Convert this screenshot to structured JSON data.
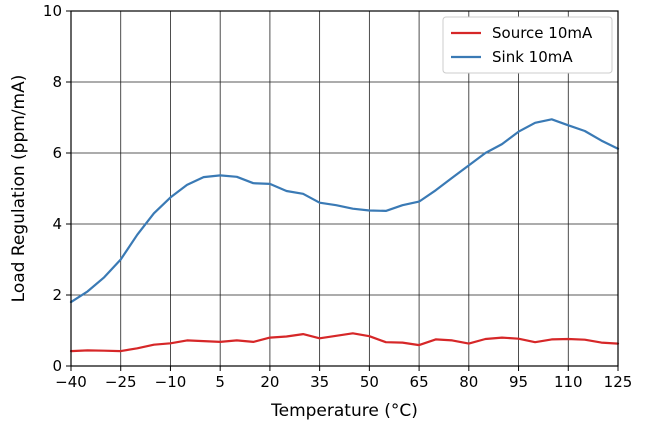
{
  "chart_data": {
    "type": "line",
    "xlabel": "Temperature (°C)",
    "ylabel": "Load Regulation (ppm/mA)",
    "xlim": [
      -40,
      125
    ],
    "ylim": [
      0,
      10
    ],
    "x_ticks": [
      -40,
      -25,
      -10,
      5,
      20,
      35,
      50,
      65,
      80,
      95,
      110,
      125
    ],
    "x_tick_labels": [
      "−40",
      "−25",
      "−10",
      "5",
      "20",
      "35",
      "50",
      "65",
      "80",
      "95",
      "110",
      "125"
    ],
    "y_ticks": [
      0,
      2,
      4,
      6,
      8,
      10
    ],
    "y_tick_labels": [
      "0",
      "2",
      "4",
      "6",
      "8",
      "10"
    ],
    "grid": true,
    "legend_position": "top-right",
    "series": [
      {
        "name": "Source 10mA",
        "color": "#d62728",
        "x": [
          -40,
          -35,
          -30,
          -25,
          -20,
          -15,
          -10,
          -5,
          0,
          5,
          10,
          15,
          20,
          25,
          30,
          35,
          40,
          45,
          50,
          55,
          60,
          65,
          70,
          75,
          80,
          85,
          90,
          95,
          100,
          105,
          110,
          115,
          120,
          125
        ],
        "values": [
          0.42,
          0.44,
          0.43,
          0.42,
          0.5,
          0.6,
          0.64,
          0.72,
          0.7,
          0.68,
          0.72,
          0.68,
          0.8,
          0.83,
          0.9,
          0.78,
          0.85,
          0.92,
          0.84,
          0.67,
          0.66,
          0.59,
          0.75,
          0.72,
          0.63,
          0.76,
          0.8,
          0.77,
          0.67,
          0.75,
          0.76,
          0.74,
          0.66,
          0.63
        ]
      },
      {
        "name": "Sink 10mA",
        "color": "#3a7ab5",
        "x": [
          -40,
          -35,
          -30,
          -25,
          -20,
          -15,
          -10,
          -5,
          0,
          5,
          10,
          15,
          20,
          25,
          30,
          35,
          40,
          45,
          50,
          55,
          60,
          65,
          70,
          75,
          80,
          85,
          90,
          95,
          100,
          105,
          110,
          115,
          120,
          125
        ],
        "values": [
          1.8,
          2.1,
          2.5,
          3.0,
          3.7,
          4.3,
          4.75,
          5.1,
          5.32,
          5.37,
          5.33,
          5.15,
          5.13,
          4.93,
          4.85,
          4.6,
          4.53,
          4.43,
          4.38,
          4.37,
          4.53,
          4.63,
          4.95,
          5.3,
          5.65,
          6.0,
          6.25,
          6.6,
          6.85,
          6.95,
          6.78,
          6.62,
          6.35,
          6.12
        ]
      }
    ]
  }
}
